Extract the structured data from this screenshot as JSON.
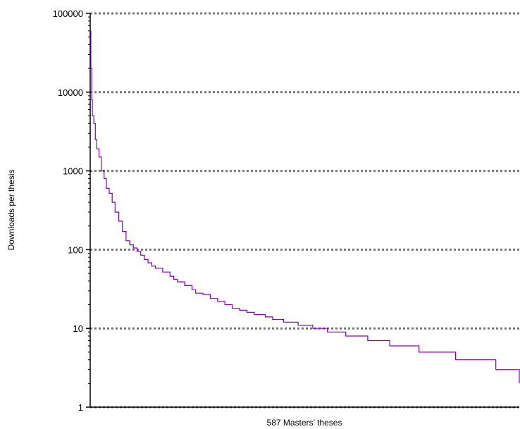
{
  "chart_data": {
    "type": "line",
    "title": "",
    "xlabel": "587 Masters’ theses",
    "ylabel": "Downloads per thesis",
    "y_scale": "log",
    "ylim": [
      1,
      100000
    ],
    "xlim": [
      1,
      587
    ],
    "y_ticks": [
      {
        "value": 1,
        "label": "1"
      },
      {
        "value": 10,
        "label": "10"
      },
      {
        "value": 100,
        "label": "100"
      },
      {
        "value": 1000,
        "label": "1000"
      },
      {
        "value": 10000,
        "label": "10000"
      },
      {
        "value": 100000,
        "label": "100000"
      }
    ],
    "grid": "horizontal dotted",
    "line_color": "#8000c0",
    "series": [
      {
        "points": [
          [
            1,
            60000
          ],
          [
            2,
            20000
          ],
          [
            3,
            8000
          ],
          [
            4,
            5000
          ],
          [
            6,
            4000
          ],
          [
            8,
            2500
          ],
          [
            10,
            1900
          ],
          [
            13,
            1500
          ],
          [
            16,
            1000
          ],
          [
            20,
            800
          ],
          [
            23,
            600
          ],
          [
            27,
            520
          ],
          [
            31,
            400
          ],
          [
            35,
            300
          ],
          [
            40,
            230
          ],
          [
            45,
            170
          ],
          [
            50,
            130
          ],
          [
            55,
            115
          ],
          [
            60,
            105
          ],
          [
            65,
            95
          ],
          [
            70,
            85
          ],
          [
            75,
            75
          ],
          [
            80,
            68
          ],
          [
            85,
            62
          ],
          [
            90,
            58
          ],
          [
            100,
            52
          ],
          [
            110,
            46
          ],
          [
            115,
            42
          ],
          [
            120,
            39
          ],
          [
            130,
            35
          ],
          [
            140,
            31
          ],
          [
            145,
            28
          ],
          [
            155,
            27
          ],
          [
            165,
            24
          ],
          [
            175,
            22
          ],
          [
            185,
            20
          ],
          [
            195,
            18
          ],
          [
            205,
            17
          ],
          [
            215,
            16
          ],
          [
            225,
            15
          ],
          [
            240,
            14
          ],
          [
            250,
            13
          ],
          [
            265,
            12
          ],
          [
            285,
            11
          ],
          [
            305,
            10
          ],
          [
            325,
            9
          ],
          [
            350,
            8
          ],
          [
            380,
            7
          ],
          [
            410,
            6
          ],
          [
            450,
            5
          ],
          [
            500,
            4
          ],
          [
            555,
            3
          ],
          [
            587,
            2
          ]
        ]
      }
    ]
  }
}
